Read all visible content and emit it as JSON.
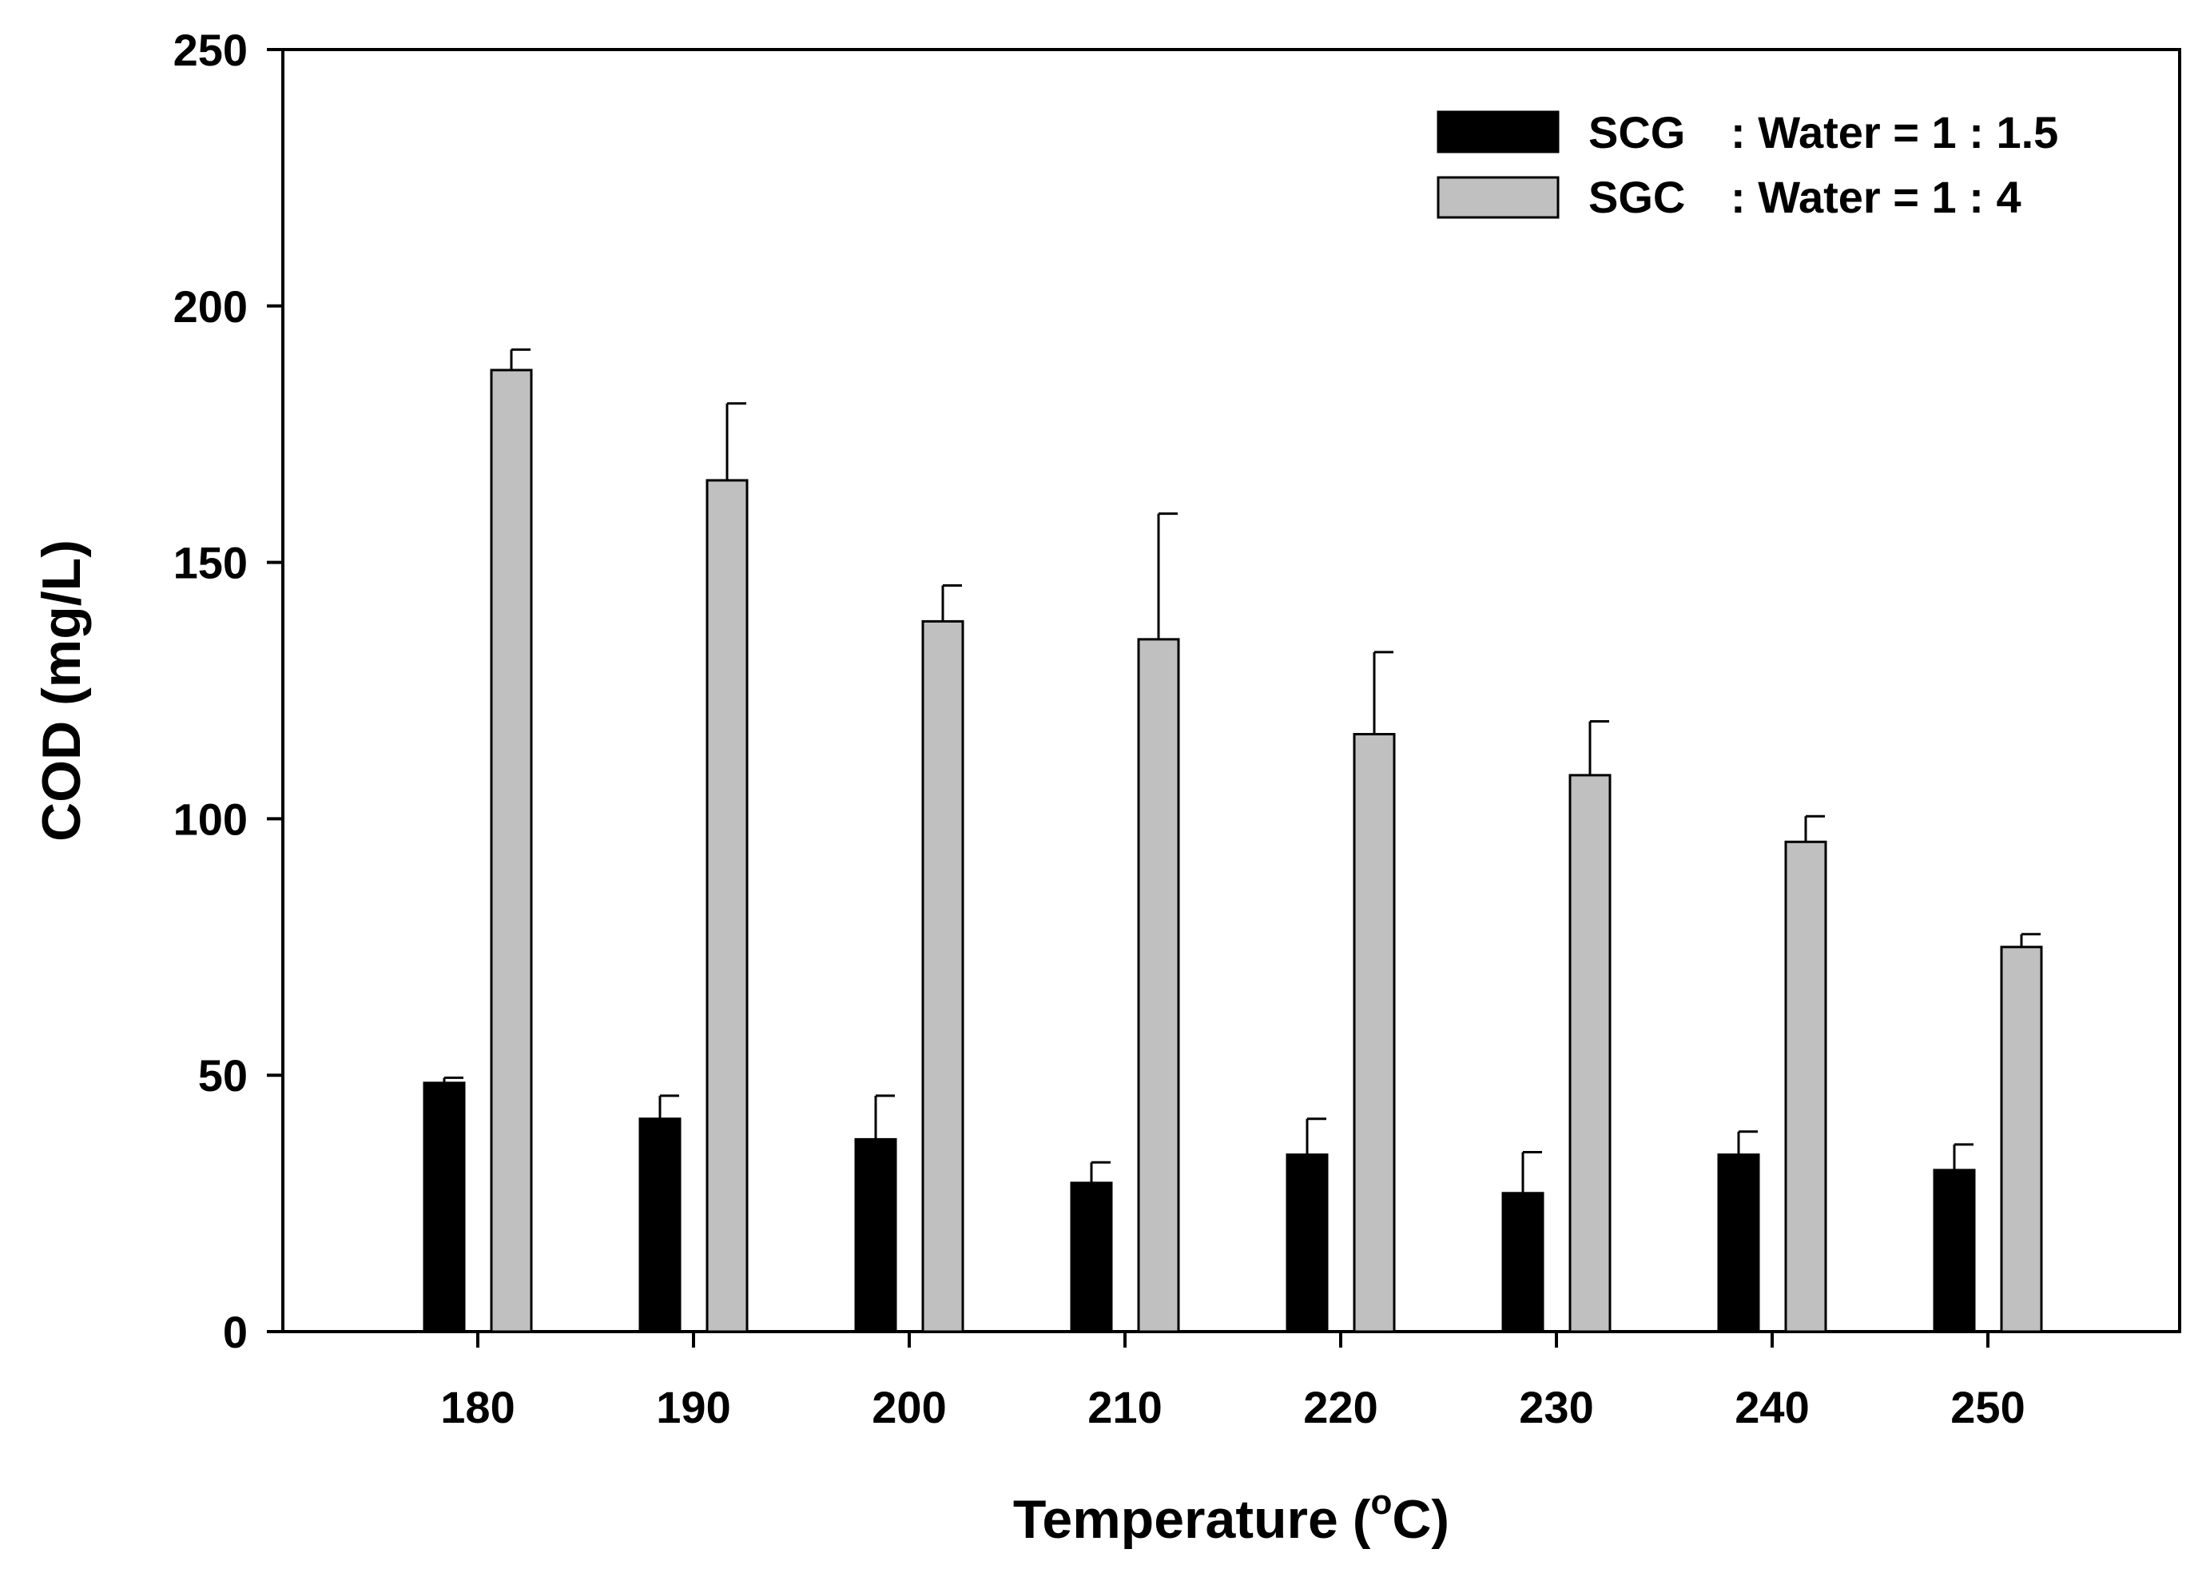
{
  "chart_data": {
    "type": "bar",
    "title": "",
    "xlabel": "Temperature",
    "xlabel_unit_prefix": "(",
    "xlabel_unit_sup": "o",
    "xlabel_unit_suffix": "C)",
    "ylabel": "COD (mg/L)",
    "ylim": [
      0,
      250
    ],
    "yticks": [
      "0",
      "50",
      "100",
      "150",
      "200",
      "250"
    ],
    "categories": [
      "180",
      "190",
      "200",
      "210",
      "220",
      "230",
      "240",
      "250"
    ],
    "series": [
      {
        "name": "SCG",
        "legend_ratio": ": Water = 1 : 1.5",
        "color": "#000000",
        "values": [
          48.5,
          41.5,
          37.5,
          29,
          34.5,
          27,
          34.5,
          31.5
        ],
        "errors": [
          1,
          4.5,
          8.5,
          4,
          7,
          8,
          4.5,
          5
        ]
      },
      {
        "name": "SGC",
        "legend_ratio": ": Water = 1 : 4",
        "color": "#c0c0c0",
        "values": [
          187.5,
          166,
          138.5,
          135,
          116.5,
          108.5,
          95.5,
          75
        ],
        "errors": [
          4,
          15,
          7,
          24.5,
          16,
          10.5,
          5,
          2.5
        ]
      }
    ],
    "legend_position": "top-right",
    "grid": false
  }
}
